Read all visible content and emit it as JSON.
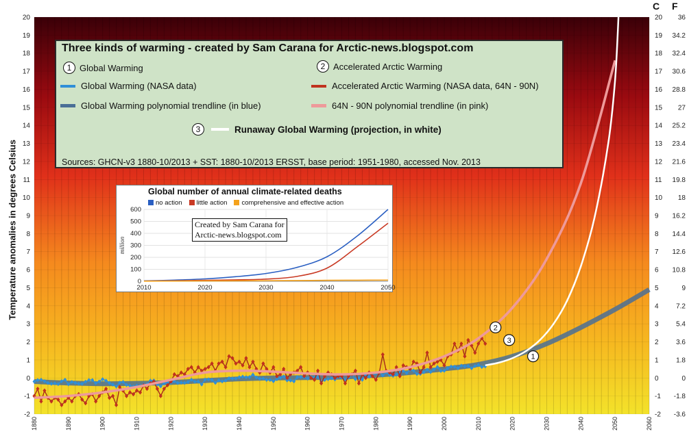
{
  "chart_data": [
    {
      "type": "line",
      "title": "Three kinds of warming - created by Sam Carana for Arctic-news.blogspot.com",
      "ylabel": "Temperature anomalies in degrees Celsius",
      "ylim": [
        -2,
        20
      ],
      "xlim": [
        1880,
        2060
      ],
      "x_ticks": [
        1880,
        1890,
        1900,
        1910,
        1920,
        1930,
        1940,
        1950,
        1960,
        1970,
        1980,
        1990,
        2000,
        2010,
        2020,
        2030,
        2040,
        2050,
        2060
      ],
      "y_ticks": [
        -2,
        -1,
        0,
        1,
        2,
        3,
        4,
        5,
        6,
        7,
        8,
        9,
        10,
        11,
        12,
        13,
        14,
        15,
        16,
        17,
        18,
        19,
        20
      ],
      "right_axis_unit_c": "C",
      "right_axis_unit_f": "F",
      "right_axis_f_ticks": [
        "-3.6",
        "-1.8",
        "0",
        "1.8",
        "3.6",
        "5.4",
        "7.2",
        "9",
        "10.8",
        "12.6",
        "14.4",
        "16.2",
        "18",
        "19.8",
        "21.6",
        "23.4",
        "25.2",
        "27",
        "28.8",
        "30.6",
        "32.4",
        "34.2",
        "36"
      ],
      "legend": {
        "item1_label": "Global Warming",
        "item1_num": "1",
        "item2_label": "Accelerated Arctic Warming",
        "item2_num": "2",
        "nasa_global_label": "Global Warming (NASA data)",
        "nasa_arctic_label": "Accelerated Arctic Warming (NASA data, 64N - 90N)",
        "global_trend_label": "Global Warming polynomial trendline (in blue)",
        "arctic_trend_label": "64N - 90N polynomial trendline (in pink)",
        "item3_num": "3",
        "item3_label": "Runaway Global Warming (projection, in white)",
        "sources": "Sources:  GHCN-v3 1880-10/2013 + SST: 1880-10/2013 ERSST,  base period: 1951-1980,  accessed Nov. 2013"
      },
      "colors": {
        "nasa_global": "#2f8fd8",
        "nasa_arctic": "#c0321e",
        "global_trend": "#4a6f96",
        "arctic_trend": "#ee9a9a",
        "runaway": "#ffffff"
      },
      "series": [
        {
          "name": "Global Warming (NASA data)",
          "x_start": 1880,
          "x_end": 2012,
          "values": [
            -0.2,
            -0.12,
            -0.1,
            -0.18,
            -0.28,
            -0.32,
            -0.3,
            -0.34,
            -0.18,
            -0.1,
            -0.35,
            -0.22,
            -0.27,
            -0.32,
            -0.32,
            -0.21,
            -0.12,
            -0.12,
            -0.29,
            -0.2,
            -0.07,
            -0.15,
            -0.28,
            -0.37,
            -0.47,
            -0.26,
            -0.22,
            -0.39,
            -0.43,
            -0.48,
            -0.43,
            -0.44,
            -0.36,
            -0.35,
            -0.15,
            -0.14,
            -0.36,
            -0.46,
            -0.3,
            -0.27,
            -0.27,
            -0.19,
            -0.28,
            -0.26,
            -0.27,
            -0.22,
            -0.1,
            -0.21,
            -0.2,
            -0.36,
            -0.09,
            -0.08,
            -0.11,
            -0.27,
            -0.13,
            -0.19,
            -0.14,
            -0.02,
            -0.03,
            -0.03,
            0.04,
            0.07,
            0.04,
            0.05,
            0.18,
            0.03,
            -0.04,
            -0.03,
            -0.11,
            -0.11,
            -0.18,
            -0.07,
            0.01,
            0.08,
            -0.13,
            -0.14,
            -0.19,
            0.05,
            0.06,
            0.03,
            -0.03,
            0.06,
            0.03,
            0.05,
            -0.2,
            -0.11,
            -0.06,
            -0.02,
            -0.08,
            0.05,
            0.03,
            -0.08,
            0.01,
            0.16,
            -0.07,
            -0.01,
            -0.1,
            0.18,
            0.07,
            0.16,
            0.26,
            0.32,
            0.14,
            0.31,
            0.16,
            0.12,
            0.18,
            0.32,
            0.39,
            0.27,
            0.45,
            0.41,
            0.22,
            0.23,
            0.32,
            0.45,
            0.33,
            0.47,
            0.61,
            0.39,
            0.4,
            0.54,
            0.63,
            0.62,
            0.54,
            0.68,
            0.64,
            0.66,
            0.54,
            0.66,
            0.72,
            0.61,
            0.64
          ]
        },
        {
          "name": "Accelerated Arctic Warming (NASA data, 64N - 90N)",
          "x_start": 1880,
          "x_end": 2012,
          "values": [
            -1.0,
            -0.6,
            -1.3,
            -0.7,
            -1.1,
            -1.3,
            -1.1,
            -1.2,
            -1.5,
            -1.3,
            -1.1,
            -1.3,
            -1.0,
            -0.9,
            -1.2,
            -1.4,
            -1.0,
            -0.9,
            -1.3,
            -1.0,
            -0.8,
            -0.6,
            -1.1,
            -1.0,
            -1.5,
            -0.5,
            -0.7,
            -1.0,
            -0.8,
            -0.9,
            -0.7,
            -0.8,
            -0.4,
            -0.6,
            -0.3,
            -0.2,
            -0.6,
            -1.0,
            -0.6,
            -0.4,
            -0.2,
            0.2,
            0.1,
            0.3,
            0.2,
            0.5,
            0.6,
            0.3,
            0.6,
            0.4,
            0.5,
            0.6,
            0.8,
            0.4,
            0.8,
            0.9,
            0.6,
            1.2,
            1.1,
            0.8,
            0.9,
            0.7,
            1.1,
            0.6,
            0.9,
            0.5,
            0.3,
            0.8,
            0.5,
            0.3,
            0.6,
            0.1,
            0.2,
            0.5,
            0.0,
            0.2,
            0.3,
            0.4,
            0.6,
            0.1,
            0.3,
            0.0,
            -0.1,
            0.4,
            -0.3,
            0.1,
            0.3,
            0.2,
            0.0,
            0.1,
            0.1,
            -0.3,
            0.1,
            0.2,
            0.4,
            -0.3,
            0.2,
            0.0,
            0.3,
            0.1,
            -0.1,
            0.3,
            1.3,
            0.4,
            0.3,
            0.2,
            0.6,
            0.1,
            0.7,
            0.6,
            0.5,
            0.9,
            0.8,
            0.3,
            0.6,
            1.4,
            0.6,
            0.8,
            0.9,
            1.0,
            0.7,
            1.2,
            1.3,
            1.9,
            1.5,
            1.9,
            1.2,
            2.1,
            1.8,
            1.4,
            1.9,
            2.2,
            1.9
          ]
        },
        {
          "name": "Global Warming polynomial trendline (in blue)",
          "x": [
            1880,
            1890,
            1900,
            1910,
            1920,
            1930,
            1940,
            1950,
            1960,
            1970,
            1980,
            1990,
            2000,
            2010,
            2020,
            2030,
            2040,
            2050,
            2060
          ],
          "values": [
            -0.2,
            -0.28,
            -0.32,
            -0.3,
            -0.25,
            -0.15,
            -0.05,
            0.0,
            0.02,
            0.05,
            0.15,
            0.3,
            0.5,
            0.75,
            1.2,
            1.9,
            2.8,
            3.8,
            4.9
          ]
        },
        {
          "name": "64N - 90N polynomial trendline (in pink)",
          "x": [
            1880,
            1890,
            1900,
            1910,
            1920,
            1930,
            1940,
            1950,
            1960,
            1970,
            1980,
            1990,
            2000,
            2010,
            2020,
            2030,
            2040,
            2050
          ],
          "values": [
            -1.1,
            -1.0,
            -0.8,
            -0.5,
            -0.1,
            0.3,
            0.4,
            0.35,
            0.25,
            0.2,
            0.3,
            0.6,
            1.2,
            2.2,
            3.9,
            6.6,
            10.8,
            17.6
          ]
        },
        {
          "name": "Runaway Global Warming (projection, in white)",
          "x": [
            2012,
            2016,
            2020,
            2024,
            2028,
            2032,
            2036,
            2040,
            2044,
            2048,
            2050,
            2051
          ],
          "values": [
            0.7,
            0.85,
            1.1,
            1.5,
            2.1,
            3.0,
            4.3,
            6.2,
            8.9,
            13.0,
            16.5,
            20.0
          ]
        }
      ],
      "annotations": [
        {
          "label": "1",
          "x": 2026,
          "y": 1.2
        },
        {
          "label": "2",
          "x": 2015,
          "y": 2.8
        },
        {
          "label": "3",
          "x": 2019,
          "y": 2.1
        }
      ]
    },
    {
      "type": "line",
      "title": "Global number of annual climate-related deaths",
      "ylabel": "million",
      "xlim": [
        2010,
        2050
      ],
      "ylim": [
        0,
        600
      ],
      "x_ticks": [
        2010,
        2020,
        2030,
        2040,
        2050
      ],
      "y_ticks": [
        0,
        100,
        200,
        300,
        400,
        500,
        600
      ],
      "credit_line1": "Created by Sam Carana for",
      "credit_line2": "Arctic-news.blogspot.com",
      "colors": {
        "no_action": "#2a5fc2",
        "little_action": "#c93a24",
        "comprehensive": "#f4a21c"
      },
      "series": [
        {
          "name": "no action",
          "x": [
            2010,
            2015,
            2020,
            2025,
            2030,
            2035,
            2040,
            2045,
            2050
          ],
          "values": [
            3,
            10,
            20,
            38,
            65,
            115,
            205,
            380,
            600
          ]
        },
        {
          "name": "little action",
          "x": [
            2010,
            2015,
            2020,
            2025,
            2030,
            2035,
            2040,
            2045,
            2050
          ],
          "values": [
            2,
            4,
            8,
            12,
            18,
            40,
            110,
            290,
            485
          ]
        },
        {
          "name": "comprehensive and effective action",
          "x": [
            2010,
            2015,
            2020,
            2025,
            2030,
            2035,
            2040,
            2045,
            2050
          ],
          "values": [
            1,
            2,
            3,
            4,
            5,
            6,
            8,
            9,
            10
          ]
        }
      ]
    }
  ]
}
